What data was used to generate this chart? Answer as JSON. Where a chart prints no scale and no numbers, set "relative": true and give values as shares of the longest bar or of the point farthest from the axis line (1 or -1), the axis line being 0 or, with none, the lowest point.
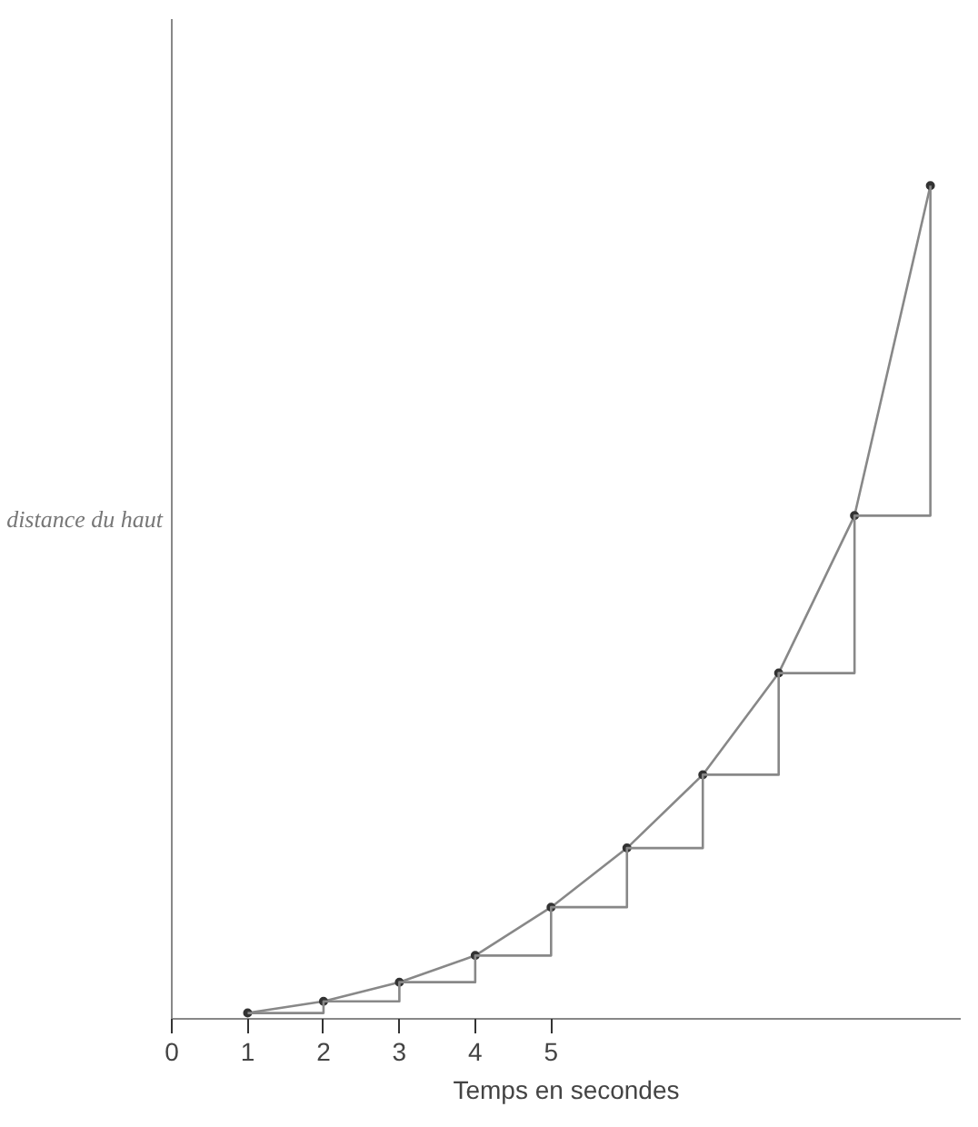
{
  "chart_data": {
    "type": "line",
    "relative": true,
    "xlabel": "Temps en secondes",
    "ylabel": "distance du haut",
    "x": [
      1,
      2,
      3,
      4,
      5,
      6,
      7,
      8,
      9,
      10
    ],
    "xlim": [
      0,
      10.4
    ],
    "xticks": [
      0,
      1,
      2,
      3,
      4,
      5
    ],
    "series": [
      {
        "color": "#888888",
        "marker": "circle",
        "values": [
          0.007,
          0.021,
          0.044,
          0.076,
          0.134,
          0.205,
          0.293,
          0.415,
          0.604,
          1
        ]
      },
      {
        "type": "step",
        "color": "#888888",
        "values": [
          0.007,
          0.021,
          0.044,
          0.076,
          0.134,
          0.205,
          0.293,
          0.415,
          0.604,
          1
        ]
      }
    ]
  }
}
